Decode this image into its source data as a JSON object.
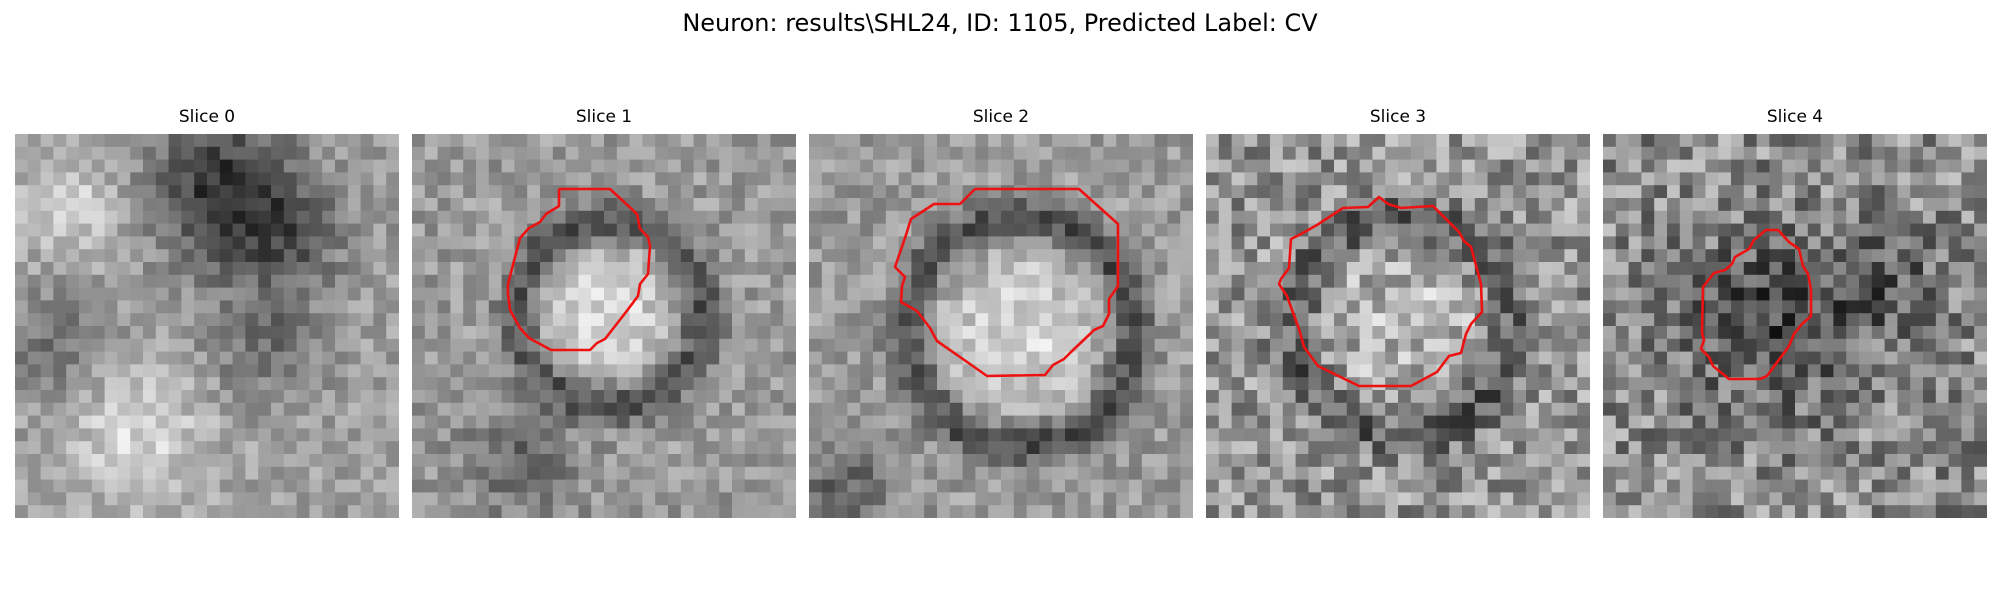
{
  "figure": {
    "title": "Neuron: results\\SHL24, ID: 1105, Predicted Label: CV",
    "colormap": "gray",
    "contour_color": "#ee1111"
  },
  "panels": [
    {
      "title": "Slice 0",
      "has_contour": false
    },
    {
      "title": "Slice 1",
      "has_contour": true
    },
    {
      "title": "Slice 2",
      "has_contour": true
    },
    {
      "title": "Slice 3",
      "has_contour": true
    },
    {
      "title": "Slice 4",
      "has_contour": true
    }
  ]
}
